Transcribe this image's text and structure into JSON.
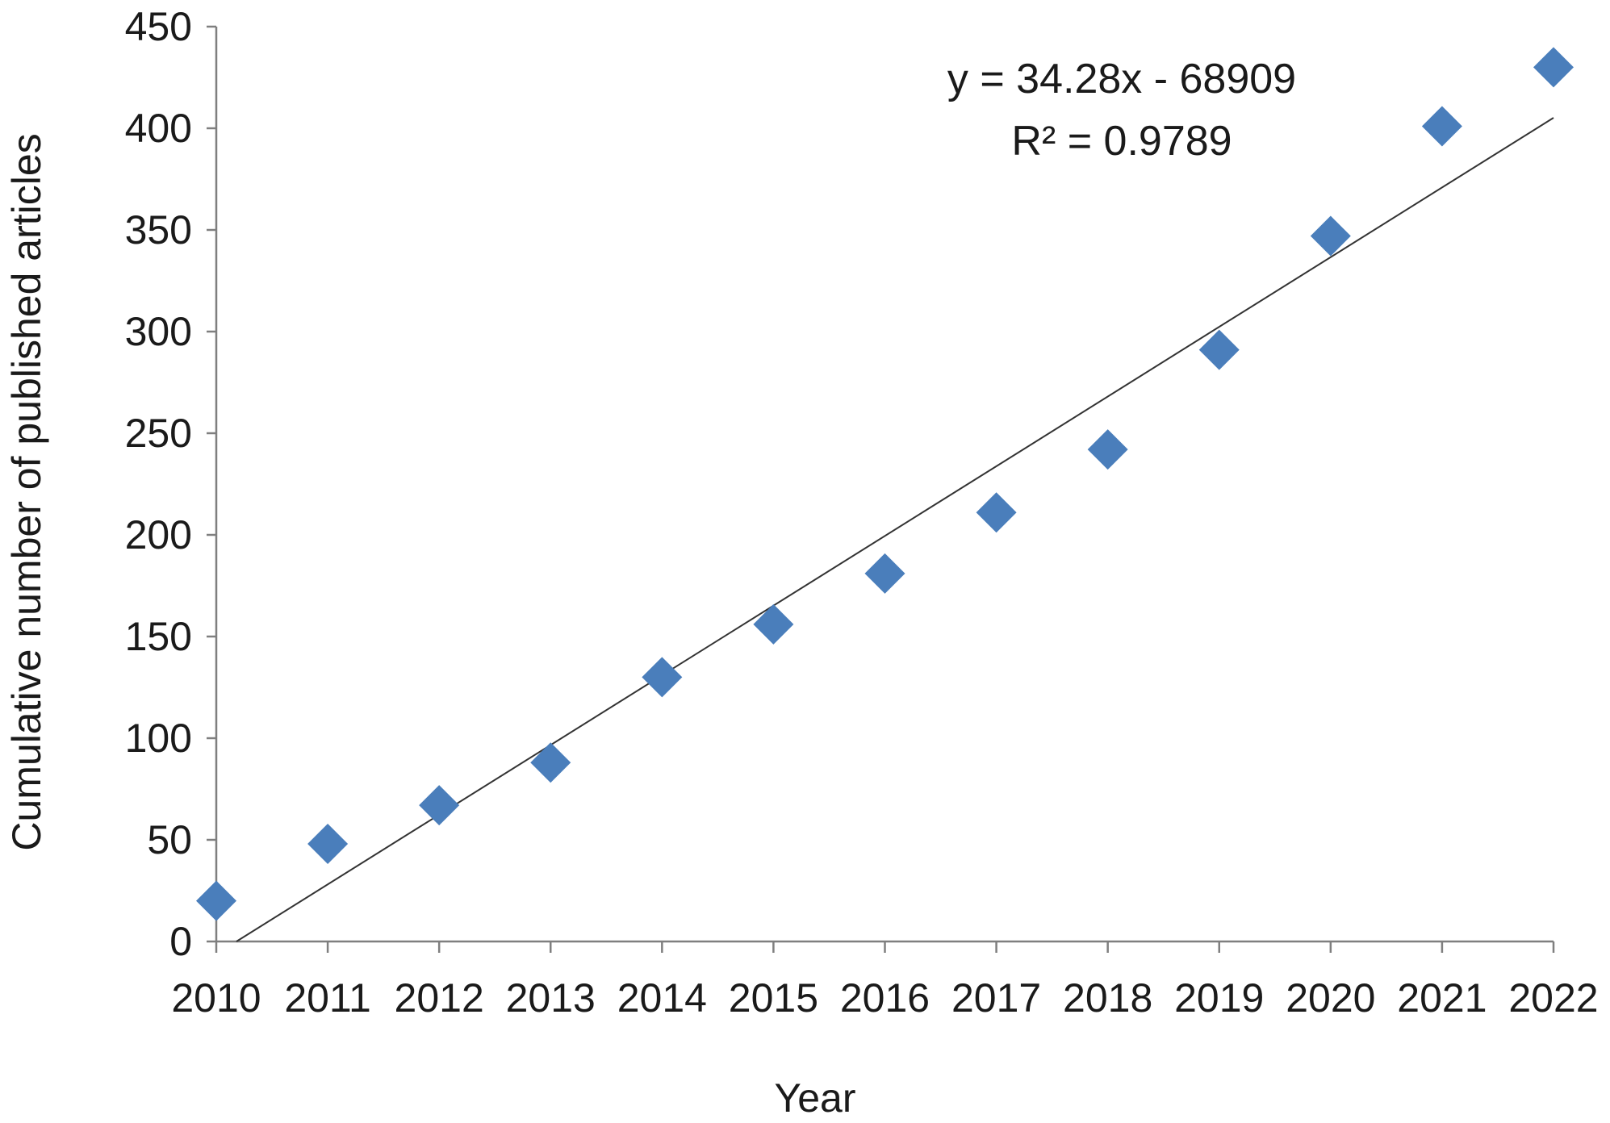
{
  "chart_data": {
    "type": "scatter",
    "title": "",
    "xlabel": "Year",
    "ylabel": "Cumulative number of published articles",
    "x": [
      2010,
      2011,
      2012,
      2013,
      2014,
      2015,
      2016,
      2017,
      2018,
      2019,
      2020,
      2021,
      2022
    ],
    "series": [
      {
        "values": [
          20,
          48,
          67,
          88,
          130,
          156,
          181,
          211,
          242,
          291,
          347,
          401,
          430
        ],
        "color": "#4a7ebb",
        "marker": "diamond"
      }
    ],
    "trendline": {
      "type": "linear",
      "slope": 34.28,
      "intercept": -68909,
      "equation_label": "y = 34.28x - 68909",
      "r2_label": "R² = 0.9789",
      "color": "#333333"
    },
    "xlim": [
      2010,
      2022
    ],
    "ylim": [
      0,
      450
    ],
    "yticks": [
      0,
      50,
      100,
      150,
      200,
      250,
      300,
      350,
      400,
      450
    ],
    "xticks": [
      "2010",
      "2011",
      "2012",
      "2013",
      "2014",
      "2015",
      "2016",
      "2017",
      "2018",
      "2019",
      "2020",
      "2021",
      "2022"
    ],
    "grid": false,
    "legend": "none"
  }
}
